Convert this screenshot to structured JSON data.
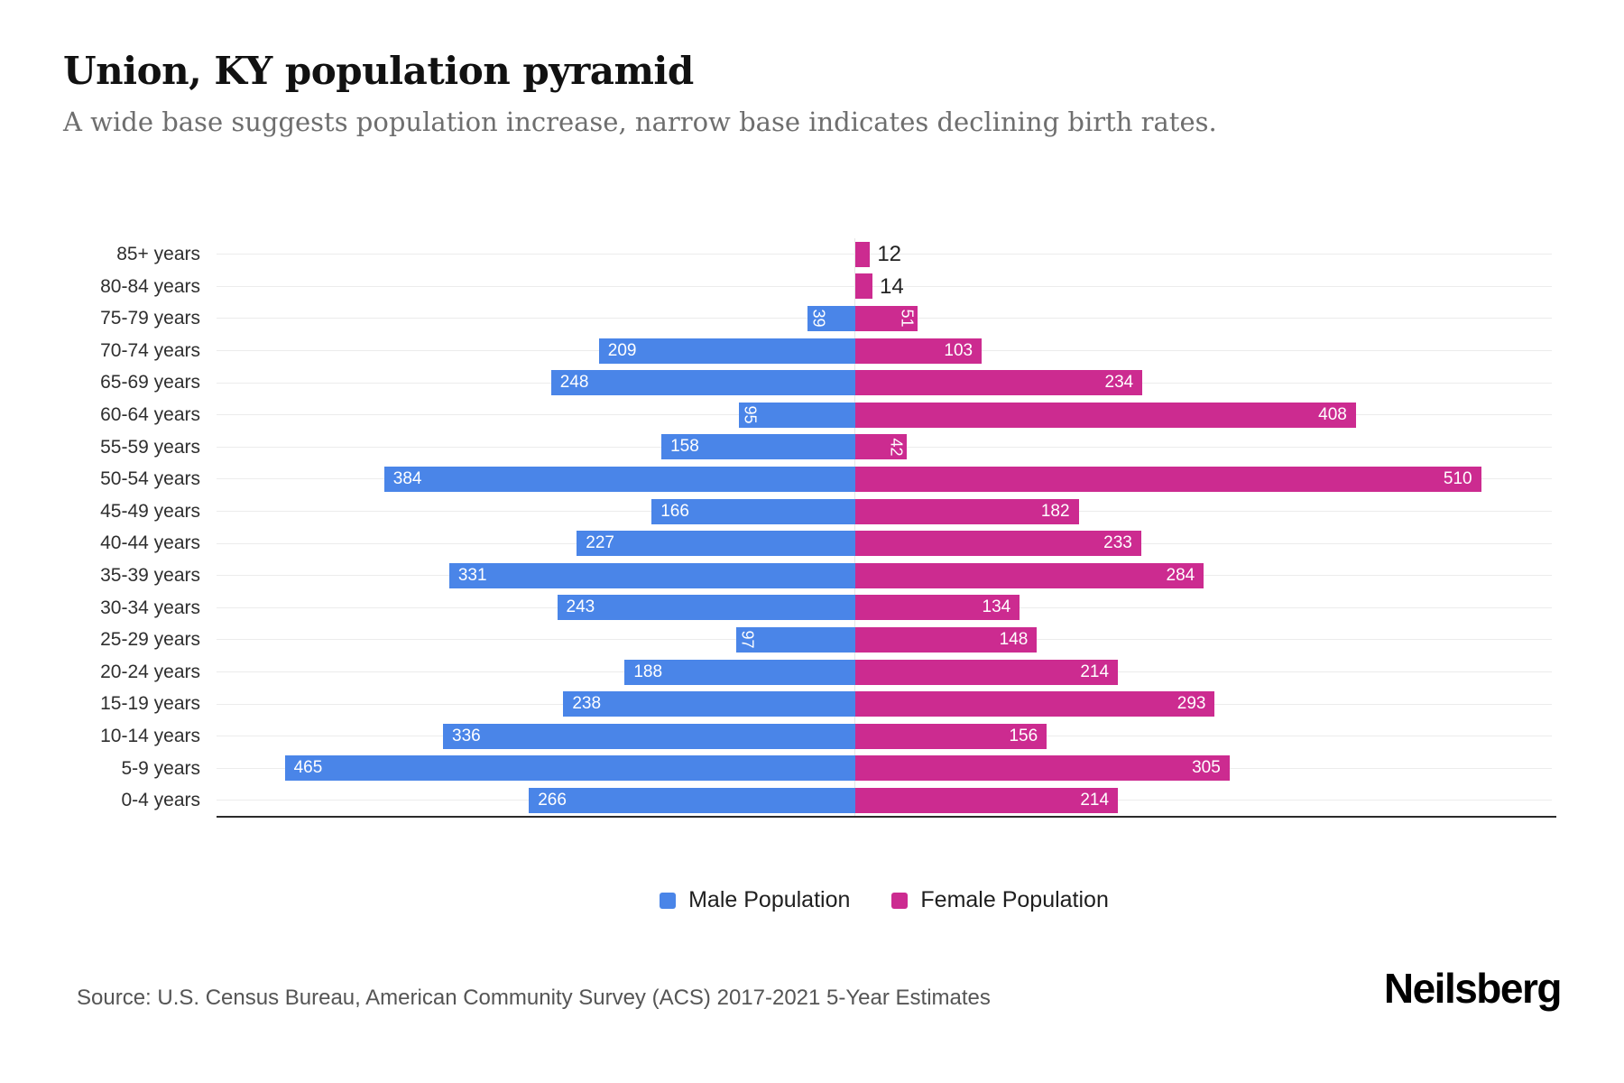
{
  "header": {
    "title": "Union, KY population pyramid",
    "subtitle": "A wide base suggests population increase, narrow base indicates declining birth rates."
  },
  "chart_data": {
    "type": "bar",
    "variant": "population-pyramid",
    "orientation": "horizontal",
    "title": "Union, KY population pyramid",
    "subtitle": "A wide base suggests population increase, narrow base indicates declining birth rates.",
    "categories": [
      "85+ years",
      "80-84 years",
      "75-79 years",
      "70-74 years",
      "65-69 years",
      "60-64 years",
      "55-59 years",
      "50-54 years",
      "45-49 years",
      "40-44 years",
      "35-39 years",
      "30-34 years",
      "25-29 years",
      "20-24 years",
      "15-19 years",
      "10-14 years",
      "5-9 years",
      "0-4 years"
    ],
    "series": [
      {
        "name": "Male Population",
        "side": "left",
        "color": "#4A85E8",
        "values": [
          0,
          0,
          39,
          209,
          248,
          95,
          158,
          384,
          166,
          227,
          331,
          243,
          97,
          188,
          238,
          336,
          465,
          266
        ]
      },
      {
        "name": "Female Population",
        "side": "right",
        "color": "#CC2B90",
        "values": [
          12,
          14,
          51,
          103,
          234,
          408,
          42,
          510,
          182,
          233,
          284,
          134,
          148,
          214,
          293,
          156,
          305,
          214
        ]
      }
    ],
    "value_axis_max": 550,
    "grid": "light horizontal line at each category center",
    "legend_position": "bottom",
    "bar_label_color_inside": "#ffffff",
    "bar_label_color_outside": "#222222"
  },
  "legend": {
    "items": [
      {
        "label": "Male Population",
        "color": "#4A85E8"
      },
      {
        "label": "Female Population",
        "color": "#CC2B90"
      }
    ]
  },
  "footer": {
    "source": "Source: U.S. Census Bureau, American Community Survey (ACS) 2017-2021 5-Year Estimates",
    "brand": "Neilsberg"
  }
}
